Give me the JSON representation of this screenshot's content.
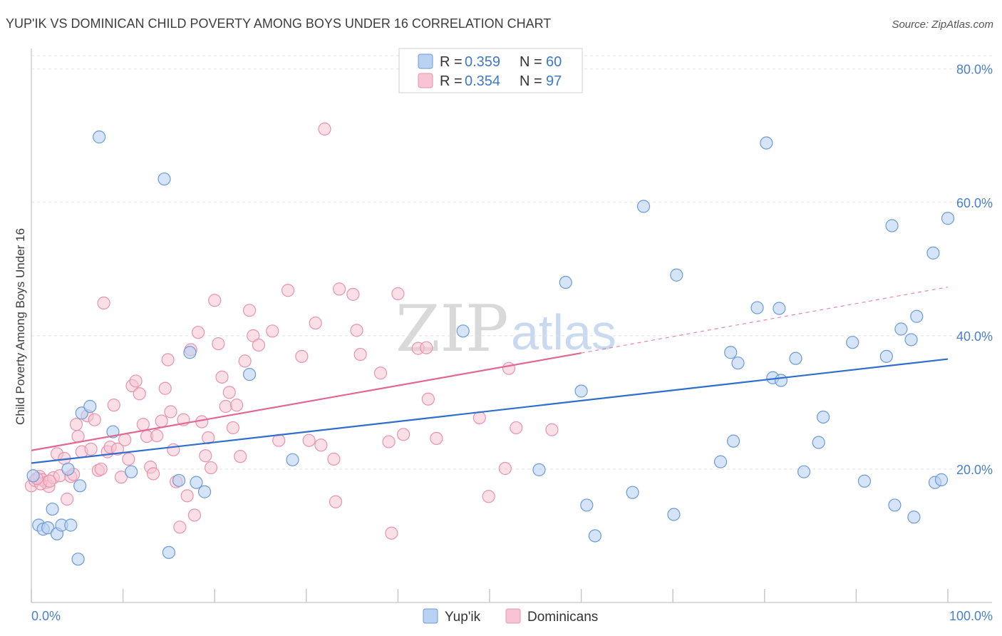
{
  "colors": {
    "yupik_fill": "#b9d2f2",
    "yupik_stroke": "#6d9ad6",
    "yupik_line": "#2f6fca",
    "dominican_fill": "#f6c4d4",
    "dominican_stroke": "#e893ae",
    "dominican_line": "#e06893",
    "grid": "#e2e2e2",
    "axis_text": "#4a7fc9"
  },
  "header": {
    "title": "YUP'IK VS DOMINICAN CHILD POVERTY AMONG BOYS UNDER 16 CORRELATION CHART",
    "source": "Source: ZipAtlas.com"
  },
  "watermark": {
    "zip": "ZIP",
    "atlas": "atlas"
  },
  "legend": {
    "rows": [
      {
        "r_label": "R =",
        "r_value": "0.359",
        "n_label": "N =",
        "n_value": "60"
      },
      {
        "r_label": "R =",
        "r_value": "0.354",
        "n_label": "N =",
        "n_value": "97"
      }
    ]
  },
  "chart_data": {
    "type": "scatter",
    "title": "YUP'IK VS DOMINICAN CHILD POVERTY AMONG BOYS UNDER 16 CORRELATION CHART",
    "ylabel": "Child Poverty Among Boys Under 16",
    "xlabel": "",
    "xlim": [
      0,
      100
    ],
    "ylim": [
      0,
      82
    ],
    "x_ticks": [
      {
        "value": 0,
        "label": "0.0%"
      },
      {
        "value": 100,
        "label": "100.0%"
      }
    ],
    "y_ticks": [
      {
        "value": 20,
        "label": "20.0%"
      },
      {
        "value": 40,
        "label": "40.0%"
      },
      {
        "value": 60,
        "label": "60.0%"
      },
      {
        "value": 80,
        "label": "80.0%"
      }
    ],
    "x_minor_ticks": [
      0,
      10,
      20,
      30,
      40,
      50,
      60,
      70,
      80,
      90,
      100
    ],
    "legend_position": "top-center",
    "series": [
      {
        "name": "Yup'ik",
        "r": 0.359,
        "n": 60,
        "trend": {
          "x0": 0,
          "y0": 20.9,
          "x1": 100,
          "y1": 36.5
        },
        "points": [
          [
            0.2,
            19.0
          ],
          [
            0.8,
            11.6
          ],
          [
            1.3,
            11.0
          ],
          [
            1.8,
            11.2
          ],
          [
            2.3,
            14.0
          ],
          [
            2.8,
            10.3
          ],
          [
            3.3,
            11.6
          ],
          [
            4.0,
            20.0
          ],
          [
            4.3,
            11.6
          ],
          [
            5.1,
            6.5
          ],
          [
            5.3,
            17.5
          ],
          [
            5.5,
            28.4
          ],
          [
            6.4,
            29.4
          ],
          [
            7.4,
            69.8
          ],
          [
            8.9,
            25.6
          ],
          [
            10.9,
            19.6
          ],
          [
            14.5,
            63.5
          ],
          [
            15.0,
            7.5
          ],
          [
            16.1,
            18.3
          ],
          [
            17.3,
            37.5
          ],
          [
            18.0,
            18.0
          ],
          [
            18.9,
            16.6
          ],
          [
            23.8,
            34.2
          ],
          [
            28.5,
            21.4
          ],
          [
            47.1,
            40.7
          ],
          [
            55.4,
            19.9
          ],
          [
            58.3,
            48.0
          ],
          [
            60.0,
            31.7
          ],
          [
            60.6,
            14.6
          ],
          [
            61.5,
            10.0
          ],
          [
            65.6,
            16.5
          ],
          [
            66.8,
            59.4
          ],
          [
            70.1,
            13.2
          ],
          [
            70.4,
            49.1
          ],
          [
            75.2,
            21.1
          ],
          [
            76.3,
            37.5
          ],
          [
            76.6,
            24.2
          ],
          [
            77.1,
            35.9
          ],
          [
            79.2,
            44.2
          ],
          [
            80.2,
            68.9
          ],
          [
            80.9,
            33.7
          ],
          [
            81.6,
            44.1
          ],
          [
            81.8,
            33.3
          ],
          [
            83.4,
            36.6
          ],
          [
            84.3,
            19.6
          ],
          [
            85.9,
            24.0
          ],
          [
            86.4,
            27.8
          ],
          [
            89.6,
            39.0
          ],
          [
            90.9,
            18.2
          ],
          [
            93.3,
            36.9
          ],
          [
            93.9,
            56.5
          ],
          [
            94.2,
            14.6
          ],
          [
            94.9,
            41.0
          ],
          [
            96.0,
            39.4
          ],
          [
            96.3,
            12.8
          ],
          [
            96.6,
            42.9
          ],
          [
            98.4,
            52.4
          ],
          [
            98.6,
            18.0
          ],
          [
            99.3,
            18.4
          ],
          [
            100.0,
            57.6
          ]
        ]
      },
      {
        "name": "Dominicans",
        "r": 0.354,
        "n": 97,
        "trend": {
          "x0": 0,
          "y0": 22.8,
          "x1": 60,
          "y1": 37.4,
          "dashed_x1": 100,
          "dashed_y1": 47.3
        },
        "points": [
          [
            0.0,
            17.5
          ],
          [
            0.4,
            18.3
          ],
          [
            0.9,
            18.9
          ],
          [
            1.2,
            18.4
          ],
          [
            1.6,
            18.0
          ],
          [
            1.9,
            17.4
          ],
          [
            2.4,
            18.7
          ],
          [
            2.8,
            22.3
          ],
          [
            3.1,
            19.0
          ],
          [
            3.6,
            21.6
          ],
          [
            3.9,
            15.5
          ],
          [
            4.3,
            18.9
          ],
          [
            4.6,
            19.2
          ],
          [
            4.9,
            26.7
          ],
          [
            5.1,
            24.9
          ],
          [
            5.5,
            22.6
          ],
          [
            6.1,
            28.0
          ],
          [
            6.5,
            23.0
          ],
          [
            6.9,
            27.4
          ],
          [
            7.3,
            19.8
          ],
          [
            7.6,
            20.0
          ],
          [
            7.9,
            44.9
          ],
          [
            8.3,
            22.6
          ],
          [
            8.6,
            23.3
          ],
          [
            9.0,
            29.6
          ],
          [
            9.4,
            23.0
          ],
          [
            9.8,
            18.8
          ],
          [
            10.2,
            24.4
          ],
          [
            10.6,
            21.5
          ],
          [
            11.0,
            32.5
          ],
          [
            11.4,
            33.2
          ],
          [
            11.8,
            31.3
          ],
          [
            12.2,
            26.7
          ],
          [
            12.6,
            24.9
          ],
          [
            13.0,
            20.3
          ],
          [
            13.3,
            19.3
          ],
          [
            13.7,
            25.0
          ],
          [
            14.2,
            27.2
          ],
          [
            14.6,
            32.1
          ],
          [
            14.9,
            36.4
          ],
          [
            15.2,
            28.6
          ],
          [
            15.5,
            22.9
          ],
          [
            15.8,
            18.1
          ],
          [
            16.2,
            11.3
          ],
          [
            16.6,
            27.4
          ],
          [
            17.0,
            16.0
          ],
          [
            17.4,
            37.9
          ],
          [
            17.8,
            13.1
          ],
          [
            18.2,
            40.5
          ],
          [
            18.6,
            27.1
          ],
          [
            19.0,
            22.0
          ],
          [
            19.3,
            24.7
          ],
          [
            19.6,
            20.2
          ],
          [
            20.0,
            45.3
          ],
          [
            20.4,
            38.8
          ],
          [
            20.8,
            33.8
          ],
          [
            21.2,
            29.4
          ],
          [
            21.6,
            31.5
          ],
          [
            22.0,
            26.2
          ],
          [
            22.4,
            29.6
          ],
          [
            22.8,
            21.9
          ],
          [
            23.3,
            36.2
          ],
          [
            23.8,
            43.8
          ],
          [
            24.2,
            40.0
          ],
          [
            24.8,
            38.6
          ],
          [
            26.3,
            40.7
          ],
          [
            27.0,
            24.3
          ],
          [
            28.0,
            46.8
          ],
          [
            29.5,
            36.9
          ],
          [
            30.3,
            24.3
          ],
          [
            31.0,
            41.9
          ],
          [
            31.6,
            23.6
          ],
          [
            32.0,
            71.0
          ],
          [
            33.0,
            21.5
          ],
          [
            33.2,
            15.1
          ],
          [
            33.6,
            47.0
          ],
          [
            35.1,
            46.2
          ],
          [
            35.5,
            40.8
          ],
          [
            35.9,
            37.2
          ],
          [
            38.1,
            34.4
          ],
          [
            39.0,
            24.1
          ],
          [
            39.3,
            10.4
          ],
          [
            40.0,
            46.3
          ],
          [
            40.6,
            25.2
          ],
          [
            42.2,
            38.1
          ],
          [
            43.1,
            38.2
          ],
          [
            43.3,
            30.5
          ],
          [
            44.2,
            24.6
          ],
          [
            48.9,
            27.7
          ],
          [
            49.9,
            15.9
          ],
          [
            51.7,
            20.1
          ],
          [
            52.1,
            35.1
          ],
          [
            52.9,
            26.2
          ],
          [
            56.8,
            25.9
          ],
          [
            1.0,
            17.8
          ],
          [
            2.0,
            18.2
          ],
          [
            0.6,
            18.6
          ]
        ]
      }
    ]
  },
  "bottom_legend": {
    "items": [
      {
        "label": "Yup'ik"
      },
      {
        "label": "Dominicans"
      }
    ]
  }
}
